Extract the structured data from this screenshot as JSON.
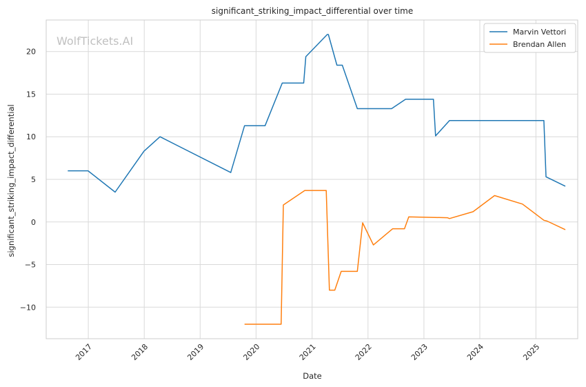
{
  "chart_data": {
    "type": "line",
    "title": "significant_striking_impact_differential over time",
    "xlabel": "Date",
    "ylabel": "significant_striking_impact_differential",
    "watermark": "WolfTickets.AI",
    "xlim": [
      "2016-04-01",
      "2025-10-01"
    ],
    "ylim": [
      -13.7,
      23.7
    ],
    "x_ticks": [
      "2017",
      "2018",
      "2019",
      "2020",
      "2021",
      "2022",
      "2023",
      "2024",
      "2025"
    ],
    "y_ticks": [
      -10,
      -5,
      0,
      5,
      10,
      15,
      20
    ],
    "grid": true,
    "legend": "top-right",
    "series": [
      {
        "name": "Marvin Vettori",
        "color": "#1f77b4",
        "points": [
          [
            "2016-08-20",
            6.0
          ],
          [
            "2016-12-30",
            6.0
          ],
          [
            "2017-06-25",
            3.5
          ],
          [
            "2017-12-30",
            8.3
          ],
          [
            "2018-04-14",
            10.0
          ],
          [
            "2019-07-20",
            5.8
          ],
          [
            "2019-10-18",
            11.3
          ],
          [
            "2020-02-29",
            11.3
          ],
          [
            "2020-06-20",
            16.3
          ],
          [
            "2020-11-07",
            16.3
          ],
          [
            "2020-11-21",
            19.4
          ],
          [
            "2021-04-10",
            22.0
          ],
          [
            "2021-04-17",
            22.0
          ],
          [
            "2021-06-12",
            18.4
          ],
          [
            "2021-07-17",
            18.4
          ],
          [
            "2021-10-23",
            13.3
          ],
          [
            "2022-06-04",
            13.3
          ],
          [
            "2022-09-03",
            14.4
          ],
          [
            "2023-03-04",
            14.4
          ],
          [
            "2023-03-18",
            10.1
          ],
          [
            "2023-06-17",
            11.9
          ],
          [
            "2025-02-22",
            11.9
          ],
          [
            "2025-03-08",
            5.3
          ],
          [
            "2025-07-12",
            4.2
          ]
        ]
      },
      {
        "name": "Brendan Allen",
        "color": "#ff7f0e",
        "points": [
          [
            "2019-10-18",
            -12.0
          ],
          [
            "2020-06-13",
            -12.0
          ],
          [
            "2020-06-27",
            2.0
          ],
          [
            "2020-11-14",
            3.7
          ],
          [
            "2021-04-03",
            3.7
          ],
          [
            "2021-04-24",
            -8.0
          ],
          [
            "2021-05-29",
            -8.0
          ],
          [
            "2021-07-10",
            -5.8
          ],
          [
            "2021-10-23",
            -5.8
          ],
          [
            "2021-11-27",
            -0.1
          ],
          [
            "2022-02-05",
            -2.7
          ],
          [
            "2022-06-11",
            -0.8
          ],
          [
            "2022-08-27",
            -0.8
          ],
          [
            "2022-09-24",
            0.6
          ],
          [
            "2023-06-03",
            0.5
          ],
          [
            "2023-06-17",
            0.4
          ],
          [
            "2023-11-18",
            1.2
          ],
          [
            "2024-04-06",
            3.1
          ],
          [
            "2024-10-05",
            2.1
          ],
          [
            "2025-02-22",
            0.2
          ],
          [
            "2025-03-15",
            0.1
          ],
          [
            "2025-07-12",
            -0.9
          ]
        ]
      }
    ]
  }
}
